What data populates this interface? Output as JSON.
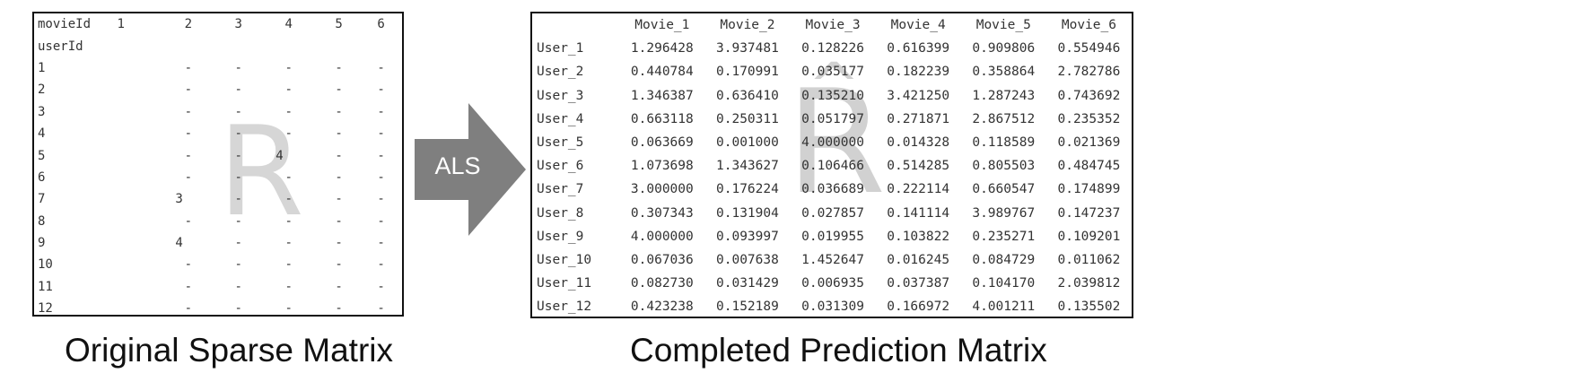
{
  "sparse": {
    "header_label": "movieId",
    "columns": [
      "1",
      "2",
      "3",
      "4",
      "5",
      "6"
    ],
    "row_header": "userId",
    "rows": [
      {
        "user": "1",
        "cells": [
          "",
          "-",
          "-",
          "-",
          "-",
          "-"
        ]
      },
      {
        "user": "2",
        "cells": [
          "",
          "-",
          "-",
          "-",
          "-",
          "-"
        ]
      },
      {
        "user": "3",
        "cells": [
          "",
          "-",
          "-",
          "-",
          "-",
          "-"
        ]
      },
      {
        "user": "4",
        "cells": [
          "",
          "-",
          "-",
          "-",
          "-",
          "-"
        ]
      },
      {
        "user": "5",
        "cells": [
          "",
          "-",
          "-",
          "4",
          "-",
          "-"
        ]
      },
      {
        "user": "6",
        "cells": [
          "",
          "-",
          "-",
          "-",
          "-",
          "-"
        ]
      },
      {
        "user": "7",
        "cells": [
          "",
          "3",
          "-",
          "-",
          "-",
          "-"
        ]
      },
      {
        "user": "8",
        "cells": [
          "",
          "-",
          "-",
          "-",
          "-",
          "-"
        ]
      },
      {
        "user": "9",
        "cells": [
          "",
          "4",
          "-",
          "-",
          "-",
          "-"
        ]
      },
      {
        "user": "10",
        "cells": [
          "",
          "-",
          "-",
          "-",
          "-",
          "-"
        ]
      },
      {
        "user": "11",
        "cells": [
          "",
          "-",
          "-",
          "-",
          "-",
          "-"
        ]
      },
      {
        "user": "12",
        "cells": [
          "",
          "-",
          "-",
          "-",
          "-",
          "-"
        ]
      }
    ],
    "watermark": "R",
    "caption": "Original Sparse Matrix"
  },
  "arrow": {
    "label": "ALS",
    "color": "#7f7f7f"
  },
  "prediction": {
    "columns": [
      "Movie_1",
      "Movie_2",
      "Movie_3",
      "Movie_4",
      "Movie_5",
      "Movie_6"
    ],
    "rows": [
      {
        "user": "User_1",
        "values": [
          "1.296428",
          "3.937481",
          "0.128226",
          "0.616399",
          "0.909806",
          "0.554946"
        ]
      },
      {
        "user": "User_2",
        "values": [
          "0.440784",
          "0.170991",
          "0.035177",
          "0.182239",
          "0.358864",
          "2.782786"
        ]
      },
      {
        "user": "User_3",
        "values": [
          "1.346387",
          "0.636410",
          "0.135210",
          "3.421250",
          "1.287243",
          "0.743692"
        ]
      },
      {
        "user": "User_4",
        "values": [
          "0.663118",
          "0.250311",
          "0.051797",
          "0.271871",
          "2.867512",
          "0.235352"
        ]
      },
      {
        "user": "User_5",
        "values": [
          "0.063669",
          "0.001000",
          "4.000000",
          "0.014328",
          "0.118589",
          "0.021369"
        ]
      },
      {
        "user": "User_6",
        "values": [
          "1.073698",
          "1.343627",
          "0.106466",
          "0.514285",
          "0.805503",
          "0.484745"
        ]
      },
      {
        "user": "User_7",
        "values": [
          "3.000000",
          "0.176224",
          "0.036689",
          "0.222114",
          "0.660547",
          "0.174899"
        ]
      },
      {
        "user": "User_8",
        "values": [
          "0.307343",
          "0.131904",
          "0.027857",
          "0.141114",
          "3.989767",
          "0.147237"
        ]
      },
      {
        "user": "User_9",
        "values": [
          "4.000000",
          "0.093997",
          "0.019955",
          "0.103822",
          "0.235271",
          "0.109201"
        ]
      },
      {
        "user": "User_10",
        "values": [
          "0.067036",
          "0.007638",
          "1.452647",
          "0.016245",
          "0.084729",
          "0.011062"
        ]
      },
      {
        "user": "User_11",
        "values": [
          "0.082730",
          "0.031429",
          "0.006935",
          "0.037387",
          "0.104170",
          "2.039812"
        ]
      },
      {
        "user": "User_12",
        "values": [
          "0.423238",
          "0.152189",
          "0.031309",
          "0.166972",
          "4.001211",
          "0.135502"
        ]
      }
    ],
    "watermark": "R",
    "watermark_hat": "^",
    "caption": "Completed Prediction Matrix"
  }
}
